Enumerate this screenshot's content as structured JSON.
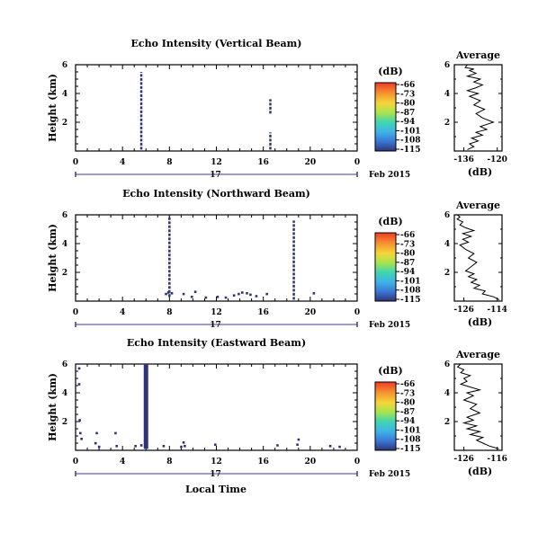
{
  "panels": [
    {
      "title": "Echo Intensity (Vertical Beam)",
      "ylabel": "Height (km)",
      "yticks": [
        "6",
        "4",
        "2"
      ],
      "xticks": [
        "0",
        "4",
        "8",
        "12",
        "16",
        "20",
        "0"
      ],
      "day_label": "17",
      "date_label": "Feb 2015",
      "cb_unit": "(dB)",
      "cb_ticks": [
        "-66",
        "-73",
        "-80",
        "-87",
        "-94",
        "-101",
        "-108",
        "-115"
      ],
      "avg_title": "Average",
      "avg_yticks": [
        "6",
        "4",
        "2"
      ],
      "avg_xticks": [
        "-136",
        "-120"
      ],
      "avg_xlabel": "(dB)"
    },
    {
      "title": "Echo Intensity (Northward Beam)",
      "ylabel": "Height (km)",
      "yticks": [
        "6",
        "4",
        "2"
      ],
      "xticks": [
        "0",
        "4",
        "8",
        "12",
        "16",
        "20",
        "0"
      ],
      "day_label": "17",
      "date_label": "Feb 2015",
      "cb_unit": "(dB)",
      "cb_ticks": [
        "-66",
        "-73",
        "-80",
        "-87",
        "-94",
        "-101",
        "-108",
        "-115"
      ],
      "avg_title": "Average",
      "avg_yticks": [
        "6",
        "4",
        "2"
      ],
      "avg_xticks": [
        "-126",
        "-114"
      ],
      "avg_xlabel": "(dB)"
    },
    {
      "title": "Echo Intensity (Eastward Beam)",
      "ylabel": "Height (km)",
      "yticks": [
        "6",
        "4",
        "2"
      ],
      "xticks": [
        "0",
        "4",
        "8",
        "12",
        "16",
        "20",
        "0"
      ],
      "day_label": "17",
      "date_label": "Feb 2015",
      "cb_unit": "(dB)",
      "cb_ticks": [
        "-66",
        "-73",
        "-80",
        "-87",
        "-94",
        "-101",
        "-108",
        "-115"
      ],
      "avg_title": "Average",
      "avg_yticks": [
        "6",
        "4",
        "2"
      ],
      "avg_xticks": [
        "-126",
        "-116"
      ],
      "avg_xlabel": "(dB)"
    }
  ],
  "xlabel_bottom": "Local Time",
  "colors": {
    "echo": "#2e3477",
    "colormap": [
      "#ef3a2a",
      "#f6902f",
      "#f4d63a",
      "#a8e34e",
      "#3fd6b0",
      "#3fb3e8",
      "#3a78d6",
      "#2e3477"
    ]
  },
  "chart_data": [
    {
      "type": "heatmap",
      "title": "Echo Intensity (Vertical Beam)",
      "ylabel": "Height (km)",
      "xlim": [
        0,
        24
      ],
      "ylim": [
        0,
        6
      ],
      "clim": [
        -115,
        -66
      ],
      "echo_segments": [
        {
          "x": 5.6,
          "y0": 0.1,
          "y1": 5.5,
          "dashed": true
        },
        {
          "x": 16.6,
          "y0": 2.6,
          "y1": 3.6,
          "dashed": true
        },
        {
          "x": 16.6,
          "y0": 0.1,
          "y1": 1.3,
          "dashed": true
        }
      ],
      "echo_points": []
    },
    {
      "type": "line",
      "title": "Average",
      "xlabel": "(dB)",
      "xlim": [
        -140,
        -118
      ],
      "ylim": [
        0,
        6
      ],
      "series": [
        {
          "x": [
            -134,
            -131,
            -133,
            -129,
            -132,
            -127,
            -130,
            -125,
            -128,
            -122,
            -127,
            -130,
            -126,
            -131,
            -128,
            -133,
            -129,
            -134,
            -130,
            -127,
            -131,
            -128,
            -134,
            -130,
            -133,
            -131,
            -135,
            -134
          ],
          "y": [
            0.1,
            0.3,
            0.5,
            0.7,
            0.9,
            1.1,
            1.3,
            1.5,
            1.7,
            2.0,
            2.3,
            2.6,
            2.9,
            3.2,
            3.5,
            3.8,
            4.0,
            4.2,
            4.4,
            4.6,
            4.8,
            5.0,
            5.2,
            5.4,
            5.6,
            5.7,
            5.8,
            6.0
          ]
        }
      ]
    },
    {
      "type": "heatmap",
      "title": "Echo Intensity (Northward Beam)",
      "ylabel": "Height (km)",
      "xlim": [
        0,
        24
      ],
      "ylim": [
        0,
        6
      ],
      "clim": [
        -115,
        -66
      ],
      "echo_segments": [
        {
          "x": 8.0,
          "y0": 0.3,
          "y1": 6.0,
          "dashed": true
        },
        {
          "x": 18.6,
          "y0": 0.1,
          "y1": 5.6,
          "dashed": true
        }
      ],
      "echo_points": [
        [
          7.7,
          0.5
        ],
        [
          7.9,
          0.6
        ],
        [
          8.2,
          0.55
        ],
        [
          9.2,
          0.5
        ],
        [
          9.9,
          0.3
        ],
        [
          10.2,
          0.65
        ],
        [
          11.1,
          0.25
        ],
        [
          12.1,
          0.3
        ],
        [
          12.8,
          0.25
        ],
        [
          13.5,
          0.4
        ],
        [
          13.9,
          0.5
        ],
        [
          14.2,
          0.6
        ],
        [
          14.6,
          0.55
        ],
        [
          14.9,
          0.45
        ],
        [
          15.4,
          0.35
        ],
        [
          16.3,
          0.5
        ],
        [
          20.3,
          0.55
        ]
      ]
    },
    {
      "type": "line",
      "title": "Average",
      "xlabel": "(dB)",
      "xlim": [
        -129,
        -112
      ],
      "ylim": [
        0,
        6
      ],
      "series": [
        {
          "x": [
            -113,
            -115,
            -119,
            -118,
            -122,
            -120,
            -123,
            -121,
            -124,
            -122,
            -125,
            -123,
            -121,
            -124,
            -122,
            -125,
            -127,
            -124,
            -126,
            -123,
            -126,
            -122,
            -125,
            -127,
            -126,
            -128,
            -127,
            -128
          ],
          "y": [
            0.1,
            0.3,
            0.5,
            0.7,
            0.9,
            1.1,
            1.3,
            1.5,
            1.7,
            1.9,
            2.1,
            2.4,
            2.7,
            3.0,
            3.3,
            3.6,
            3.9,
            4.1,
            4.3,
            4.5,
            4.7,
            4.9,
            5.1,
            5.3,
            5.5,
            5.7,
            5.85,
            6.0
          ]
        }
      ]
    },
    {
      "type": "heatmap",
      "title": "Echo Intensity (Eastward Beam)",
      "ylabel": "Height (km)",
      "xlim": [
        0,
        24
      ],
      "ylim": [
        0,
        6
      ],
      "clim": [
        -115,
        -66
      ],
      "echo_segments": [
        {
          "x": 6.0,
          "y0": 0.1,
          "y1": 6.0,
          "dashed": false,
          "wide": true
        }
      ],
      "echo_points": [
        [
          0.3,
          5.7
        ],
        [
          0.3,
          4.6
        ],
        [
          0.35,
          2.1
        ],
        [
          0.4,
          1.2
        ],
        [
          0.5,
          0.8
        ],
        [
          1.8,
          1.2
        ],
        [
          3.4,
          1.2
        ],
        [
          3.5,
          0.3
        ],
        [
          1.7,
          0.5
        ],
        [
          2.0,
          0.25
        ],
        [
          5.1,
          0.3
        ],
        [
          5.6,
          0.35
        ],
        [
          7.5,
          0.3
        ],
        [
          9.0,
          0.25
        ],
        [
          9.3,
          0.3
        ],
        [
          9.2,
          0.55
        ],
        [
          11.9,
          0.4
        ],
        [
          17.2,
          0.35
        ],
        [
          18.9,
          0.4
        ],
        [
          19.0,
          0.75
        ],
        [
          21.7,
          0.3
        ],
        [
          22.5,
          0.25
        ]
      ]
    },
    {
      "type": "line",
      "title": "Average",
      "xlabel": "(dB)",
      "xlim": [
        -129,
        -114
      ],
      "ylim": [
        0,
        6
      ],
      "series": [
        {
          "x": [
            -115,
            -118,
            -120,
            -122,
            -120,
            -124,
            -121,
            -125,
            -122,
            -126,
            -123,
            -125,
            -121,
            -124,
            -122,
            -126,
            -123,
            -125,
            -121,
            -124,
            -127,
            -125,
            -126,
            -124,
            -127,
            -126,
            -128,
            -127
          ],
          "y": [
            0.1,
            0.3,
            0.5,
            0.7,
            0.9,
            1.1,
            1.3,
            1.5,
            1.7,
            1.9,
            2.1,
            2.3,
            2.6,
            2.9,
            3.2,
            3.5,
            3.8,
            4.0,
            4.2,
            4.4,
            4.6,
            4.8,
            5.0,
            5.2,
            5.4,
            5.6,
            5.8,
            6.0
          ]
        }
      ]
    }
  ]
}
